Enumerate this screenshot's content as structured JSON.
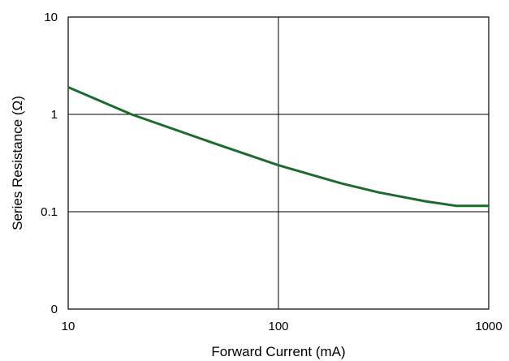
{
  "chart_data": {
    "type": "line",
    "xlabel": "Forward Current (mA)",
    "ylabel": "Series Resistance (Ω)",
    "x_scale": "log",
    "y_scale": "log",
    "xlim": [
      10,
      1000
    ],
    "ylim_labels": [
      "0",
      "0.1",
      "1",
      "10"
    ],
    "x_ticks": [
      {
        "value": 10,
        "label": "10"
      },
      {
        "value": 100,
        "label": "100"
      },
      {
        "value": 1000,
        "label": "1000"
      }
    ],
    "y_ticks": [
      {
        "value": 0.01,
        "label": "0"
      },
      {
        "value": 0.1,
        "label": "0.1"
      },
      {
        "value": 1,
        "label": "1"
      },
      {
        "value": 10,
        "label": "10"
      }
    ],
    "grid": true,
    "series": [
      {
        "color": "#1e6b2e",
        "points": [
          {
            "x": 10,
            "y": 1.9
          },
          {
            "x": 20,
            "y": 1.0
          },
          {
            "x": 50,
            "y": 0.5
          },
          {
            "x": 100,
            "y": 0.3
          },
          {
            "x": 200,
            "y": 0.195
          },
          {
            "x": 300,
            "y": 0.158
          },
          {
            "x": 500,
            "y": 0.128
          },
          {
            "x": 700,
            "y": 0.115
          },
          {
            "x": 1000,
            "y": 0.115
          }
        ]
      }
    ]
  }
}
